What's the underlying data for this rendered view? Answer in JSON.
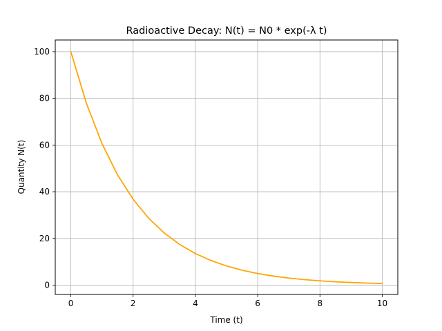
{
  "chart_data": {
    "type": "line",
    "title": "Radioactive Decay: N(t) = N0 * exp(-λ t)",
    "xlabel": "Time (t)",
    "ylabel": "Quantity N(t)",
    "xlim": [
      -0.5,
      10.5
    ],
    "ylim": [
      -4,
      105
    ],
    "xticks": [
      0,
      2,
      4,
      6,
      8,
      10
    ],
    "yticks": [
      0,
      20,
      40,
      60,
      80,
      100
    ],
    "grid": true,
    "legend": "none",
    "series": [
      {
        "color": "#ffa500",
        "x": [
          0,
          0.5,
          1,
          1.5,
          2,
          2.5,
          3,
          3.5,
          4,
          4.5,
          5,
          5.5,
          6,
          6.5,
          7,
          7.5,
          8,
          8.5,
          9,
          9.5,
          10
        ],
        "y": [
          100,
          77.9,
          60.65,
          47.24,
          36.79,
          28.65,
          22.31,
          17.38,
          13.53,
          10.54,
          8.21,
          6.39,
          4.98,
          3.88,
          3.02,
          2.35,
          1.83,
          1.43,
          1.11,
          0.87,
          0.67
        ]
      }
    ]
  }
}
